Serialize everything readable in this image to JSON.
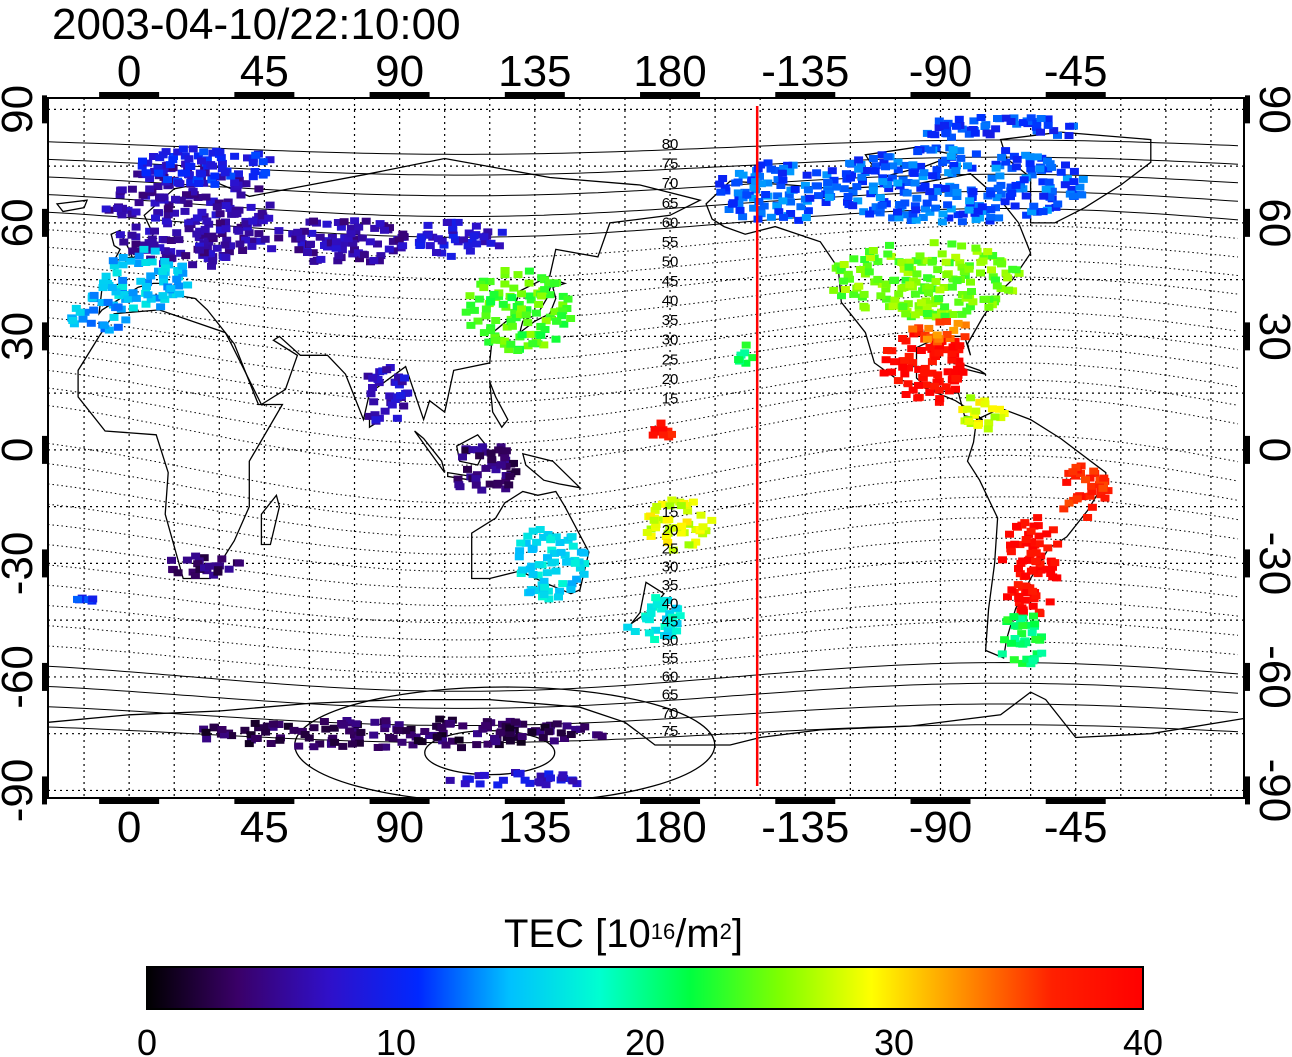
{
  "title": "2003-04-10/22:10:00",
  "map": {
    "lon_ticks": [
      {
        "label": "0",
        "lon": 0
      },
      {
        "label": "45",
        "lon": 45
      },
      {
        "label": "90",
        "lon": 90
      },
      {
        "label": "135",
        "lon": 135
      },
      {
        "label": "180",
        "lon": 180
      },
      {
        "label": "-135",
        "lon": 225
      },
      {
        "label": "-90",
        "lon": 270
      },
      {
        "label": "-45",
        "lon": 315
      }
    ],
    "lat_ticks": [
      {
        "label": "90",
        "lat": 90
      },
      {
        "label": "60",
        "lat": 60
      },
      {
        "label": "30",
        "lat": 30
      },
      {
        "label": "0",
        "lat": 0
      },
      {
        "label": "-30",
        "lat": -30
      },
      {
        "label": "-60",
        "lat": -60
      },
      {
        "label": "-90",
        "lat": -90
      }
    ],
    "lon_range": [
      -27,
      371
    ],
    "lat_range": [
      -92,
      93
    ],
    "grid": true,
    "terminator_longitude": 209,
    "magnetic_latitude_labels": [
      "80",
      "75",
      "70",
      "65",
      "60",
      "55",
      "50",
      "45",
      "40",
      "35",
      "30",
      "25",
      "20",
      "15",
      "15",
      "20",
      "25",
      "30",
      "35",
      "40",
      "45",
      "50",
      "55",
      "60",
      "65",
      "70",
      "75"
    ]
  },
  "colorbar": {
    "title_main": "TEC  [10",
    "title_exp1": "16",
    "title_mid": "/m",
    "title_exp2": "2",
    "title_end": "]",
    "min": 0,
    "max": 40,
    "tick_labels": [
      "0",
      "10",
      "20",
      "30",
      "40"
    ],
    "colors": [
      "#000000",
      "#3a0068",
      "#3010c8",
      "#0028ff",
      "#00c0ff",
      "#00ffd0",
      "#00ff40",
      "#80ff00",
      "#ffff00",
      "#ff9000",
      "#ff2000",
      "#ff0000"
    ]
  },
  "tec_regions": [
    {
      "name": "europe",
      "cx": 20,
      "cy": 62,
      "rx": 28,
      "ry": 14,
      "tec": 6
    },
    {
      "name": "north-europe",
      "cx": 25,
      "cy": 75,
      "rx": 25,
      "ry": 5,
      "tec": 10
    },
    {
      "name": "western-europe",
      "cx": 5,
      "cy": 45,
      "rx": 15,
      "ry": 8,
      "tec": 15
    },
    {
      "name": "iberia",
      "cx": -10,
      "cy": 36,
      "rx": 10,
      "ry": 5,
      "tec": 14
    },
    {
      "name": "central-asia",
      "cx": 70,
      "cy": 55,
      "rx": 25,
      "ry": 6,
      "tec": 6
    },
    {
      "name": "east-asia",
      "cx": 130,
      "cy": 37,
      "rx": 18,
      "ry": 11,
      "tec": 24
    },
    {
      "name": "siberia",
      "cx": 110,
      "cy": 56,
      "rx": 15,
      "ry": 5,
      "tec": 8
    },
    {
      "name": "north-america",
      "cx": 265,
      "cy": 45,
      "rx": 32,
      "ry": 10,
      "tec": 25
    },
    {
      "name": "canada",
      "cx": 275,
      "cy": 70,
      "rx": 45,
      "ry": 10,
      "tec": 12
    },
    {
      "name": "arctic",
      "cx": 290,
      "cy": 85,
      "rx": 30,
      "ry": 3,
      "tec": 11
    },
    {
      "name": "mexico",
      "cx": 265,
      "cy": 22,
      "rx": 14,
      "ry": 10,
      "tec": 39
    },
    {
      "name": "gulf",
      "cx": 270,
      "cy": 31,
      "rx": 12,
      "ry": 3,
      "tec": 34
    },
    {
      "name": "alaska",
      "cx": 215,
      "cy": 68,
      "rx": 20,
      "ry": 8,
      "tec": 12
    },
    {
      "name": "south-america",
      "cx": 300,
      "cy": -30,
      "rx": 10,
      "ry": 14,
      "tec": 39
    },
    {
      "name": "s-america-south",
      "cx": 297,
      "cy": -50,
      "rx": 8,
      "ry": 8,
      "tec": 21
    },
    {
      "name": "australia",
      "cx": 140,
      "cy": -30,
      "rx": 12,
      "ry": 10,
      "tec": 16
    },
    {
      "name": "new-zealand",
      "cx": 175,
      "cy": -45,
      "rx": 10,
      "ry": 6,
      "tec": 17
    },
    {
      "name": "pacific-islands",
      "cx": 183,
      "cy": -20,
      "rx": 12,
      "ry": 7,
      "tec": 28
    },
    {
      "name": "south-africa",
      "cx": 25,
      "cy": -30,
      "rx": 12,
      "ry": 4,
      "tec": 4
    },
    {
      "name": "antarctica",
      "cx": 90,
      "cy": -75,
      "rx": 70,
      "ry": 4,
      "tec": 3
    },
    {
      "name": "antarctica-2",
      "cx": 130,
      "cy": -87,
      "rx": 25,
      "ry": 2,
      "tec": 8
    },
    {
      "name": "indonesia",
      "cx": 118,
      "cy": -5,
      "rx": 12,
      "ry": 7,
      "tec": 4
    },
    {
      "name": "india",
      "cx": 85,
      "cy": 15,
      "rx": 8,
      "ry": 8,
      "tec": 7
    },
    {
      "name": "hawaii",
      "cx": 205,
      "cy": 25,
      "rx": 4,
      "ry": 3,
      "tec": 21
    },
    {
      "name": "brazil-east",
      "cx": 318,
      "cy": -12,
      "rx": 8,
      "ry": 8,
      "tec": 37
    },
    {
      "name": "caribbean",
      "cx": 285,
      "cy": 10,
      "rx": 8,
      "ry": 5,
      "tec": 28
    },
    {
      "name": "central-pacific",
      "cx": 178,
      "cy": 5,
      "rx": 4,
      "ry": 4,
      "tec": 38
    },
    {
      "name": "south-atlantic",
      "cx": -15,
      "cy": -40,
      "rx": 4,
      "ry": 2,
      "tec": 11
    }
  ]
}
